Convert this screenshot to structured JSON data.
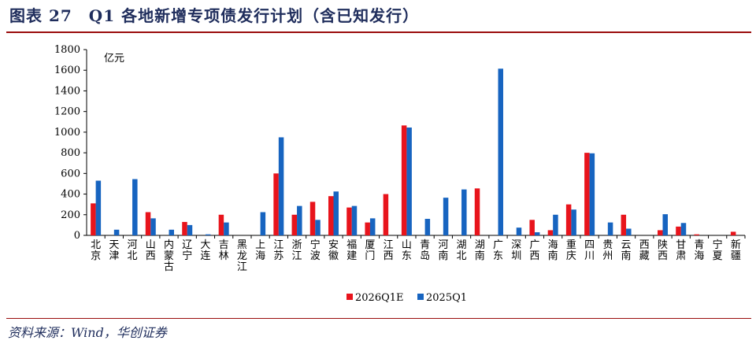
{
  "figure": {
    "title": "图表 27　Q1 各地新增专项债发行计划（含已知发行）",
    "source": "资料来源：Wind，华创证券"
  },
  "chart_data": {
    "type": "bar",
    "unit_label": "亿元",
    "ylim": [
      0,
      1800
    ],
    "yticks": [
      "0",
      "200",
      "400",
      "600",
      "800",
      "1000",
      "1200",
      "1400",
      "1600",
      "1800"
    ],
    "categories": [
      "北京",
      "天津",
      "河北",
      "山西",
      "内蒙古",
      "辽宁",
      "大连",
      "吉林",
      "黑龙江",
      "上海",
      "江苏",
      "浙江",
      "宁波",
      "安徽",
      "福建",
      "厦门",
      "江西",
      "山东",
      "青岛",
      "河南",
      "湖北",
      "湖南",
      "广东",
      "深圳",
      "广西",
      "海南",
      "重庆",
      "四川",
      "贵州",
      "云南",
      "西藏",
      "陕西",
      "甘肃",
      "青海",
      "宁夏",
      "新疆"
    ],
    "series": [
      {
        "name": "2026Q1E",
        "color": "#e8141c",
        "values": [
          310,
          0,
          0,
          225,
          0,
          130,
          0,
          200,
          0,
          0,
          600,
          200,
          325,
          380,
          270,
          125,
          400,
          1065,
          0,
          0,
          0,
          455,
          0,
          0,
          150,
          50,
          300,
          800,
          0,
          200,
          0,
          50,
          85,
          10,
          0,
          35
        ]
      },
      {
        "name": "2025Q1",
        "color": "#1764c0",
        "values": [
          530,
          55,
          545,
          165,
          55,
          100,
          10,
          125,
          0,
          225,
          950,
          285,
          150,
          425,
          285,
          165,
          0,
          1045,
          160,
          365,
          445,
          0,
          1615,
          75,
          30,
          200,
          250,
          795,
          125,
          65,
          0,
          205,
          120,
          0,
          0,
          0
        ]
      }
    ],
    "legend_position": "bottom-center",
    "grid": false
  }
}
